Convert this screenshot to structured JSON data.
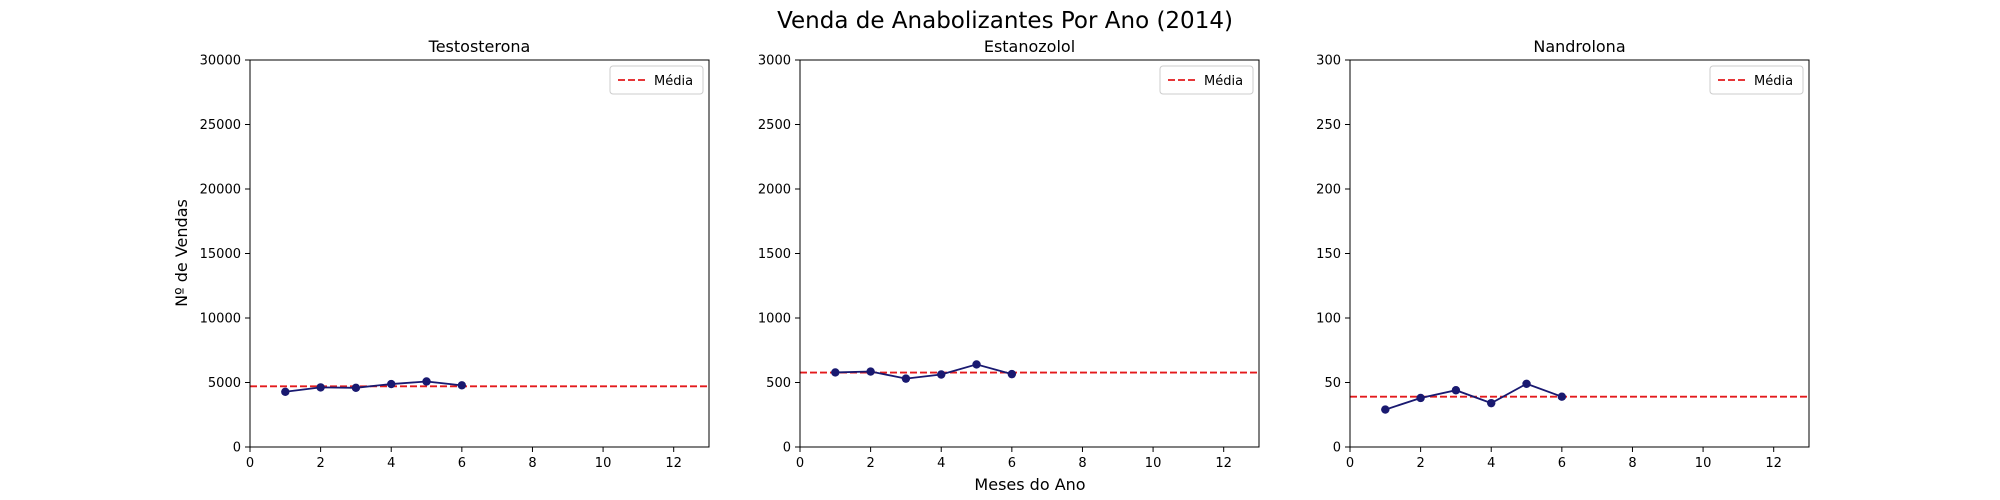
{
  "figure": {
    "title": "Venda de Anabolizantes Por Ano (2014)",
    "xlabel": "Meses do Ano",
    "ylabel": "Nº de Vendas"
  },
  "colors": {
    "series": "#191970",
    "mean_line": "#e31a1c",
    "axes": "#000000"
  },
  "chart_data": [
    {
      "type": "line",
      "title": "Testosterona",
      "x": [
        1,
        2,
        3,
        4,
        5,
        6
      ],
      "series": [
        {
          "values": [
            4280,
            4620,
            4590,
            4880,
            5080,
            4780
          ]
        }
      ],
      "reference_line": {
        "label": "Média",
        "value": 4705,
        "style": "dashed"
      },
      "xlim": [
        0,
        13
      ],
      "ylim": [
        0,
        30000
      ],
      "xticks": [
        0,
        2,
        4,
        6,
        8,
        10,
        12
      ],
      "yticks": [
        0,
        5000,
        10000,
        15000,
        20000,
        25000,
        30000
      ],
      "legend": "top-right",
      "grid": false
    },
    {
      "type": "line",
      "title": "Estanozolol",
      "x": [
        1,
        2,
        3,
        4,
        5,
        6
      ],
      "series": [
        {
          "values": [
            578,
            585,
            530,
            562,
            640,
            565
          ]
        }
      ],
      "reference_line": {
        "label": "Média",
        "value": 577,
        "style": "dashed"
      },
      "xlim": [
        0,
        13
      ],
      "ylim": [
        0,
        3000
      ],
      "xticks": [
        0,
        2,
        4,
        6,
        8,
        10,
        12
      ],
      "yticks": [
        0,
        500,
        1000,
        1500,
        2000,
        2500,
        3000
      ],
      "legend": "top-right",
      "grid": false
    },
    {
      "type": "line",
      "title": "Nandrolona",
      "x": [
        1,
        2,
        3,
        4,
        5,
        6
      ],
      "series": [
        {
          "values": [
            29,
            38,
            44,
            34,
            49,
            39
          ]
        }
      ],
      "reference_line": {
        "label": "Média",
        "value": 39,
        "style": "dashed"
      },
      "xlim": [
        0,
        13
      ],
      "ylim": [
        0,
        300
      ],
      "xticks": [
        0,
        2,
        4,
        6,
        8,
        10,
        12
      ],
      "yticks": [
        0,
        50,
        100,
        150,
        200,
        250,
        300
      ],
      "legend": "top-right",
      "grid": false
    }
  ]
}
